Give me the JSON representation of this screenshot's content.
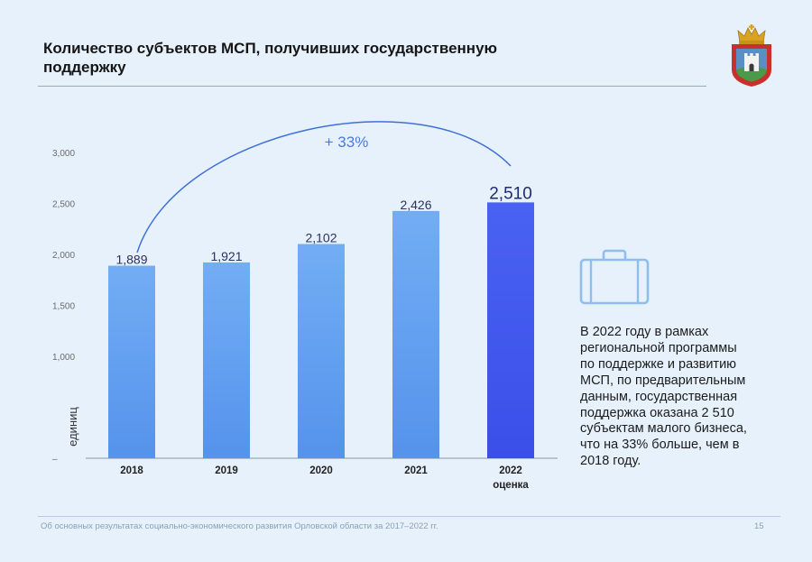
{
  "header": {
    "title_lines": [
      "Количество субъектов МСП, получивших государственную",
      "поддержку"
    ],
    "emblem_icon": "coat-of-arms-icon"
  },
  "chart_data": {
    "type": "bar",
    "title": "Количество субъектов МСП, получивших государственную поддержку",
    "categories": [
      "2018",
      "2019",
      "2020",
      "2021",
      "2022"
    ],
    "category_sublabels": [
      "",
      "",
      "",
      "",
      "оценка"
    ],
    "values": [
      1889,
      1921,
      2102,
      2426,
      2510
    ],
    "value_labels": [
      "1,889",
      "1,921",
      "2,102",
      "2,426",
      "2,510"
    ],
    "highlight_index": 4,
    "xlabel": "",
    "ylabel": "единиц",
    "ylim": [
      0,
      3000
    ],
    "yticks": [
      {
        "value": 3000,
        "label": "3,000"
      },
      {
        "value": 2500,
        "label": "2,500"
      },
      {
        "value": 2000,
        "label": "2,000"
      },
      {
        "value": 1500,
        "label": "1,500"
      },
      {
        "value": 1000,
        "label": "1,000"
      },
      {
        "value": 0,
        "label": "–"
      }
    ],
    "grid": false,
    "legend": "none",
    "annotation": "+ 33%"
  },
  "info_panel": {
    "icon": "briefcase-icon",
    "text_lines": [
      "В 2022 году в рамках",
      "региональной программы",
      "по поддержке и развитию",
      "МСП, по предварительным",
      "данным, государственная",
      "поддержка оказана 2 510",
      "субъектам малого бизнеса,",
      "что на 33% больше, чем в",
      "2018 году."
    ]
  },
  "footer": {
    "caption": "Об основных результатах социально-экономического развития Орловской области за 2017–2022 гг.",
    "page_number": "15"
  },
  "colors": {
    "background": "#e6f1fc",
    "bar": "#5593ec",
    "bar_light": "#72adf4",
    "bar_highlight": "#3a4fe8",
    "bar_highlight_light": "#4a62f3",
    "value_label": "#2b3160",
    "value_label_highlight": "#1e2a78",
    "annotation": "#4a7ae0",
    "arc": "#3f70d8",
    "axis": "#9aa8b8",
    "tick_label": "#6b6b6b",
    "icon_stroke": "#8fbdec"
  }
}
